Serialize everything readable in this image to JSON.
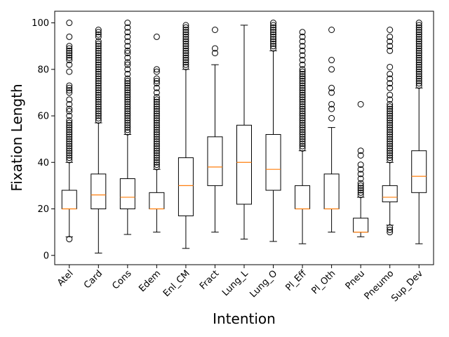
{
  "chart_data": {
    "type": "box",
    "xlabel": "Intention",
    "ylabel": "Fixation Length",
    "ylim": [
      -4,
      105
    ],
    "yticks": [
      0,
      20,
      40,
      60,
      80,
      100
    ],
    "grid": false,
    "colors": {
      "median": "#ff7f0e",
      "box": "#000000",
      "flier": "#000000"
    },
    "categories": [
      "Atel",
      "Card",
      "Cons",
      "Edem",
      "Enl_CM",
      "Fract",
      "Lung_L",
      "Lung_O",
      "Pl_Eff",
      "Pl_Oth",
      "Pneu",
      "Pneumo",
      "Sup_Dev"
    ],
    "boxes": [
      {
        "label": "Atel",
        "whislo": 8,
        "q1": 20,
        "med": 20,
        "q3": 28,
        "whishi": 40,
        "fliers": [
          7,
          41,
          42,
          43,
          44,
          45,
          46,
          47,
          48,
          49,
          50,
          51,
          52,
          53,
          54,
          55,
          56,
          57,
          58,
          60,
          62,
          63,
          65,
          67,
          70,
          71,
          72,
          73,
          79,
          82,
          84,
          85,
          86,
          87,
          88,
          89,
          90,
          94,
          100
        ]
      },
      {
        "label": "Card",
        "whislo": 1,
        "q1": 20,
        "med": 26,
        "q3": 35,
        "whishi": 57,
        "fliers": [
          58,
          59,
          60,
          61,
          62,
          63,
          64,
          65,
          66,
          67,
          68,
          69,
          70,
          71,
          72,
          73,
          74,
          75,
          76,
          77,
          78,
          79,
          80,
          81,
          82,
          83,
          84,
          85,
          86,
          87,
          88,
          89,
          90,
          91,
          92,
          94,
          95,
          96,
          97
        ]
      },
      {
        "label": "Cons",
        "whislo": 9,
        "q1": 20,
        "med": 25,
        "q3": 33,
        "whishi": 52,
        "fliers": [
          53,
          54,
          55,
          56,
          57,
          58,
          59,
          60,
          61,
          62,
          63,
          64,
          65,
          66,
          67,
          68,
          69,
          70,
          71,
          72,
          73,
          74,
          75,
          76,
          78,
          80,
          82,
          83,
          85,
          87,
          88,
          90,
          92,
          94,
          96,
          98,
          100
        ]
      },
      {
        "label": "Edem",
        "whislo": 10,
        "q1": 20,
        "med": 20,
        "q3": 27,
        "whishi": 37,
        "fliers": [
          38,
          39,
          40,
          41,
          42,
          43,
          44,
          45,
          46,
          47,
          48,
          49,
          50,
          51,
          52,
          53,
          54,
          55,
          56,
          57,
          58,
          59,
          60,
          61,
          62,
          63,
          64,
          65,
          66,
          67,
          68,
          70,
          72,
          74,
          75,
          76,
          79,
          80,
          94
        ]
      },
      {
        "label": "Enl_CM",
        "whislo": 3,
        "q1": 17,
        "med": 30,
        "q3": 42,
        "whishi": 80,
        "fliers": [
          81,
          82,
          83,
          84,
          85,
          86,
          87,
          88,
          89,
          90,
          91,
          92,
          93,
          94,
          95,
          96,
          97,
          98,
          99
        ]
      },
      {
        "label": "Fract",
        "whislo": 10,
        "q1": 30,
        "med": 38,
        "q3": 51,
        "whishi": 82,
        "fliers": [
          87,
          89,
          97
        ]
      },
      {
        "label": "Lung_L",
        "whislo": 7,
        "q1": 22,
        "med": 40,
        "q3": 56,
        "whishi": 99,
        "fliers": []
      },
      {
        "label": "Lung_O",
        "whislo": 6,
        "q1": 28,
        "med": 37,
        "q3": 52,
        "whishi": 88,
        "fliers": [
          89,
          90,
          91,
          92,
          93,
          94,
          95,
          96,
          97,
          98,
          99,
          100
        ]
      },
      {
        "label": "Pl_Eff",
        "whislo": 5,
        "q1": 20,
        "med": 20,
        "q3": 30,
        "whishi": 45,
        "fliers": [
          46,
          47,
          48,
          49,
          50,
          51,
          52,
          53,
          54,
          55,
          56,
          57,
          58,
          59,
          60,
          61,
          62,
          63,
          64,
          65,
          66,
          67,
          68,
          69,
          70,
          71,
          72,
          73,
          74,
          75,
          76,
          77,
          78,
          79,
          80,
          82,
          84,
          86,
          88,
          90,
          92,
          94,
          96
        ]
      },
      {
        "label": "Pl_Oth",
        "whislo": 10,
        "q1": 20,
        "med": 20,
        "q3": 35,
        "whishi": 55,
        "fliers": [
          59,
          63,
          65,
          70,
          72,
          80,
          84,
          97
        ]
      },
      {
        "label": "Pneu",
        "whislo": 8,
        "q1": 10,
        "med": 10,
        "q3": 16,
        "whishi": 25,
        "fliers": [
          26,
          27,
          28,
          29,
          30,
          31,
          33,
          35,
          37,
          39,
          43,
          45,
          65
        ]
      },
      {
        "label": "Pneumo",
        "whislo": 13,
        "q1": 23,
        "med": 25,
        "q3": 30,
        "whishi": 40,
        "fliers": [
          10,
          11,
          12,
          41,
          42,
          43,
          44,
          45,
          46,
          47,
          48,
          49,
          50,
          51,
          52,
          53,
          54,
          55,
          56,
          57,
          58,
          59,
          60,
          61,
          62,
          63,
          64,
          65,
          67,
          69,
          72,
          74,
          76,
          78,
          81,
          88,
          90,
          92,
          94,
          97
        ]
      },
      {
        "label": "Sup_Dev",
        "whislo": 5,
        "q1": 27,
        "med": 34,
        "q3": 45,
        "whishi": 72,
        "fliers": [
          73,
          74,
          75,
          76,
          77,
          78,
          79,
          80,
          81,
          82,
          83,
          84,
          85,
          86,
          87,
          88,
          89,
          90,
          91,
          92,
          93,
          94,
          95,
          96,
          97,
          98,
          99,
          100
        ]
      }
    ]
  }
}
